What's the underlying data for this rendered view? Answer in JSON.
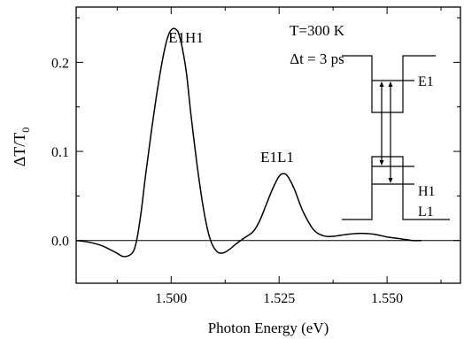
{
  "chart_data": {
    "type": "line",
    "xlabel": "Photon Energy (eV)",
    "ylabel_main": "ΔT/T",
    "ylabel_sub": "0",
    "xlim": [
      1.478,
      1.567
    ],
    "ylim": [
      -0.048,
      0.262
    ],
    "x_ticks": [
      {
        "value": 1.5,
        "label": "1.500"
      },
      {
        "value": 1.525,
        "label": "1.525"
      },
      {
        "value": 1.55,
        "label": "1.550"
      }
    ],
    "y_ticks": [
      {
        "value": 0.0,
        "label": "0.0"
      },
      {
        "value": 0.1,
        "label": "0.1"
      },
      {
        "value": 0.2,
        "label": "0.2"
      }
    ],
    "grid": false,
    "series": [
      {
        "x": [
          1.478,
          1.481,
          1.484,
          1.487,
          1.489,
          1.491,
          1.492,
          1.493,
          1.494,
          1.4955,
          1.497,
          1.4985,
          1.4995,
          1.5005,
          1.5015,
          1.502,
          1.5025,
          1.5035,
          1.5045,
          1.506,
          1.5075,
          1.509,
          1.5105,
          1.512,
          1.5135,
          1.515,
          1.517,
          1.519,
          1.5205,
          1.522,
          1.5235,
          1.525,
          1.526,
          1.527,
          1.5285,
          1.5305,
          1.533,
          1.5355,
          1.538,
          1.541,
          1.544,
          1.547,
          1.55,
          1.553,
          1.556,
          1.558
        ],
        "y": [
          0.0,
          -0.002,
          -0.006,
          -0.013,
          -0.018,
          -0.014,
          0.0,
          0.03,
          0.07,
          0.125,
          0.175,
          0.215,
          0.232,
          0.238,
          0.235,
          0.228,
          0.218,
          0.19,
          0.145,
          0.085,
          0.035,
          0.002,
          -0.012,
          -0.014,
          -0.01,
          -0.004,
          0.003,
          0.01,
          0.022,
          0.04,
          0.058,
          0.072,
          0.075,
          0.072,
          0.058,
          0.033,
          0.012,
          0.005,
          0.005,
          0.007,
          0.008,
          0.007,
          0.004,
          0.002,
          0.0,
          0.0
        ]
      }
    ],
    "reference_line_y": 0.0,
    "peak_labels": [
      {
        "text": "E1H1",
        "x": 1.5015,
        "y": 0.238
      },
      {
        "text": "E1L1",
        "x": 1.526,
        "y": 0.075
      }
    ],
    "annotations": [
      "T=300 K",
      "Δt = 3 ps"
    ],
    "inset_level_labels": [
      "E1",
      "H1",
      "L1"
    ]
  }
}
